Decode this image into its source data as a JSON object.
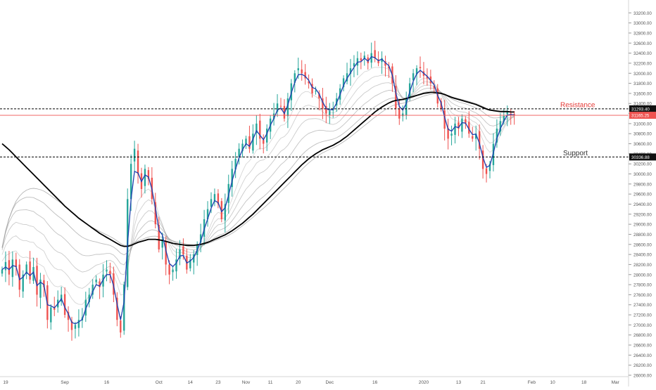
{
  "chart_data": {
    "type": "line",
    "title": "",
    "xlabel": "",
    "ylabel": "",
    "ylim": [
      26000,
      33400
    ],
    "y_ticks": [
      26000,
      26200,
      26400,
      26600,
      26800,
      27000,
      27200,
      27400,
      27600,
      27800,
      28000,
      28200,
      28400,
      28600,
      28800,
      29000,
      29200,
      29400,
      29600,
      29800,
      30000,
      30200,
      30400,
      30600,
      30800,
      31000,
      31200,
      31400,
      31600,
      31800,
      32000,
      32200,
      32400,
      32600,
      32800,
      33000,
      33200
    ],
    "x_labels": [
      "19",
      "Sep",
      "16",
      "Oct",
      "14",
      "23",
      "Nov",
      "11",
      "20",
      "Dec",
      "16",
      "2020",
      "13",
      "21",
      "Feb",
      "10",
      "18",
      "Mar"
    ],
    "x_label_pos": [
      1,
      18,
      30,
      45,
      54,
      62,
      70,
      77,
      85,
      94,
      107,
      121,
      131,
      138,
      152,
      158,
      167,
      176
    ],
    "grid": false,
    "legend": "none",
    "candle_close": [
      28100,
      28250,
      28000,
      28300,
      28150,
      27700,
      28000,
      28200,
      27900,
      28150,
      27600,
      27900,
      27750,
      27100,
      27350,
      27300,
      27500,
      27600,
      27200,
      27100,
      26900,
      27000,
      27100,
      27150,
      27500,
      27600,
      27800,
      27900,
      27750,
      28000,
      28100,
      28000,
      27600,
      27100,
      26850,
      27800,
      29500,
      30200,
      30500,
      30000,
      29700,
      30100,
      29900,
      29500,
      29000,
      28500,
      28700,
      28200,
      28000,
      28100,
      28300,
      28500,
      28400,
      28100,
      28300,
      28400,
      28600,
      28800,
      29100,
      29300,
      29500,
      29600,
      29400,
      29100,
      29400,
      29800,
      30100,
      30300,
      30500,
      30600,
      30700,
      30500,
      30800,
      31000,
      30700,
      30600,
      30900,
      31100,
      31200,
      31400,
      31350,
      31100,
      31500,
      31800,
      32000,
      32100,
      32000,
      31900,
      31800,
      31600,
      31650,
      31500,
      31300,
      31200,
      31250,
      31300,
      31500,
      31700,
      31900,
      32000,
      32100,
      32200,
      32300,
      32250,
      32350,
      32200,
      32400,
      32300,
      32200,
      32300,
      32150,
      32100,
      31800,
      31300,
      31100,
      31200,
      31500,
      31800,
      32000,
      32100,
      32100,
      31950,
      31900,
      31800,
      31700,
      31400,
      31300,
      30900,
      30700,
      30800,
      31000,
      30900,
      31100,
      31000,
      30800,
      30700,
      30800,
      30500,
      30100,
      30000,
      30200,
      30600,
      30900,
      31050,
      31150,
      31250,
      31190,
      31170
    ],
    "moving_averages": {
      "fast_ema": [
        28100,
        28150,
        28100,
        28180,
        28160,
        27900,
        27950,
        28050,
        27980,
        28050,
        27780,
        27850,
        27800,
        27400,
        27380,
        27340,
        27420,
        27520,
        27350,
        27220,
        27050,
        27020,
        27060,
        27110,
        27320,
        27480,
        27660,
        27800,
        27770,
        27900,
        28000,
        28000,
        27780,
        27420,
        27100,
        27460,
        28600,
        29500,
        30050,
        30020,
        29850,
        29980,
        29940,
        29700,
        29320,
        28880,
        28790,
        28480,
        28220,
        28160,
        28230,
        28370,
        28380,
        28230,
        28270,
        28340,
        28490,
        28660,
        28900,
        29110,
        29320,
        29470,
        29430,
        29250,
        29330,
        29580,
        29860,
        30100,
        30320,
        30480,
        30600,
        30550,
        30690,
        30860,
        30770,
        30680,
        30800,
        30970,
        31100,
        31270,
        31310,
        31200,
        31370,
        31610,
        31820,
        31970,
        31980,
        31940,
        31860,
        31720,
        31690,
        31590,
        31430,
        31300,
        31270,
        31280,
        31410,
        31580,
        31760,
        31900,
        32010,
        32120,
        32220,
        32230,
        32300,
        32240,
        32330,
        32310,
        32250,
        32280,
        32210,
        32150,
        31960,
        31610,
        31340,
        31270,
        31400,
        31630,
        31840,
        31990,
        32060,
        32000,
        31940,
        31860,
        31770,
        31560,
        31410,
        31130,
        30890,
        30850,
        30940,
        30920,
        31020,
        31010,
        30890,
        30780,
        30790,
        30610,
        30330,
        30130,
        30170,
        30420,
        30700,
        30900,
        31050,
        31170,
        31180,
        31175
      ],
      "ema_200": [
        30600,
        30540,
        30480,
        30410,
        30340,
        30270,
        30200,
        30130,
        30060,
        29990,
        29920,
        29850,
        29780,
        29710,
        29640,
        29570,
        29500,
        29430,
        29360,
        29300,
        29240,
        29180,
        29120,
        29070,
        29020,
        28970,
        28920,
        28870,
        28820,
        28780,
        28740,
        28700,
        28660,
        28620,
        28580,
        28560,
        28560,
        28580,
        28610,
        28640,
        28660,
        28680,
        28700,
        28700,
        28700,
        28690,
        28680,
        28660,
        28640,
        28620,
        28610,
        28600,
        28590,
        28580,
        28580,
        28580,
        28590,
        28600,
        28620,
        28640,
        28670,
        28700,
        28730,
        28760,
        28790,
        28830,
        28870,
        28920,
        28970,
        29020,
        29080,
        29140,
        29200,
        29270,
        29340,
        29410,
        29480,
        29550,
        29620,
        29690,
        29760,
        29830,
        29900,
        29970,
        30040,
        30110,
        30180,
        30240,
        30300,
        30350,
        30400,
        30440,
        30480,
        30510,
        30540,
        30570,
        30610,
        30650,
        30700,
        30750,
        30810,
        30870,
        30930,
        30990,
        31050,
        31110,
        31170,
        31230,
        31280,
        31330,
        31370,
        31410,
        31440,
        31460,
        31470,
        31480,
        31500,
        31520,
        31540,
        31560,
        31580,
        31600,
        31610,
        31620,
        31620,
        31610,
        31600,
        31580,
        31550,
        31520,
        31500,
        31480,
        31460,
        31440,
        31420,
        31400,
        31380,
        31350,
        31320,
        31290,
        31270,
        31260,
        31250,
        31240,
        31240,
        31240,
        31230,
        31230
      ]
    },
    "price_lines": [
      {
        "price": 31293.4,
        "label": "31293.40",
        "style": "dashed",
        "color": "#000000",
        "annotation": "Resistance",
        "annotation_color": "#e53935"
      },
      {
        "price": 30336.88,
        "label": "30336.88",
        "style": "dashed",
        "color": "#000000",
        "annotation": "Support",
        "annotation_color": "#333333"
      },
      {
        "price": 31165.25,
        "label": "31165.25",
        "style": "solid",
        "color": "#ef5350",
        "annotation": "",
        "annotation_color": ""
      }
    ]
  },
  "colors": {
    "up": "#26a69a",
    "down": "#ef5350",
    "fast_ema": "#1e40af",
    "ema_200": "#000000",
    "ribbon": "#9e9e9e",
    "axis_text": "#555555"
  }
}
